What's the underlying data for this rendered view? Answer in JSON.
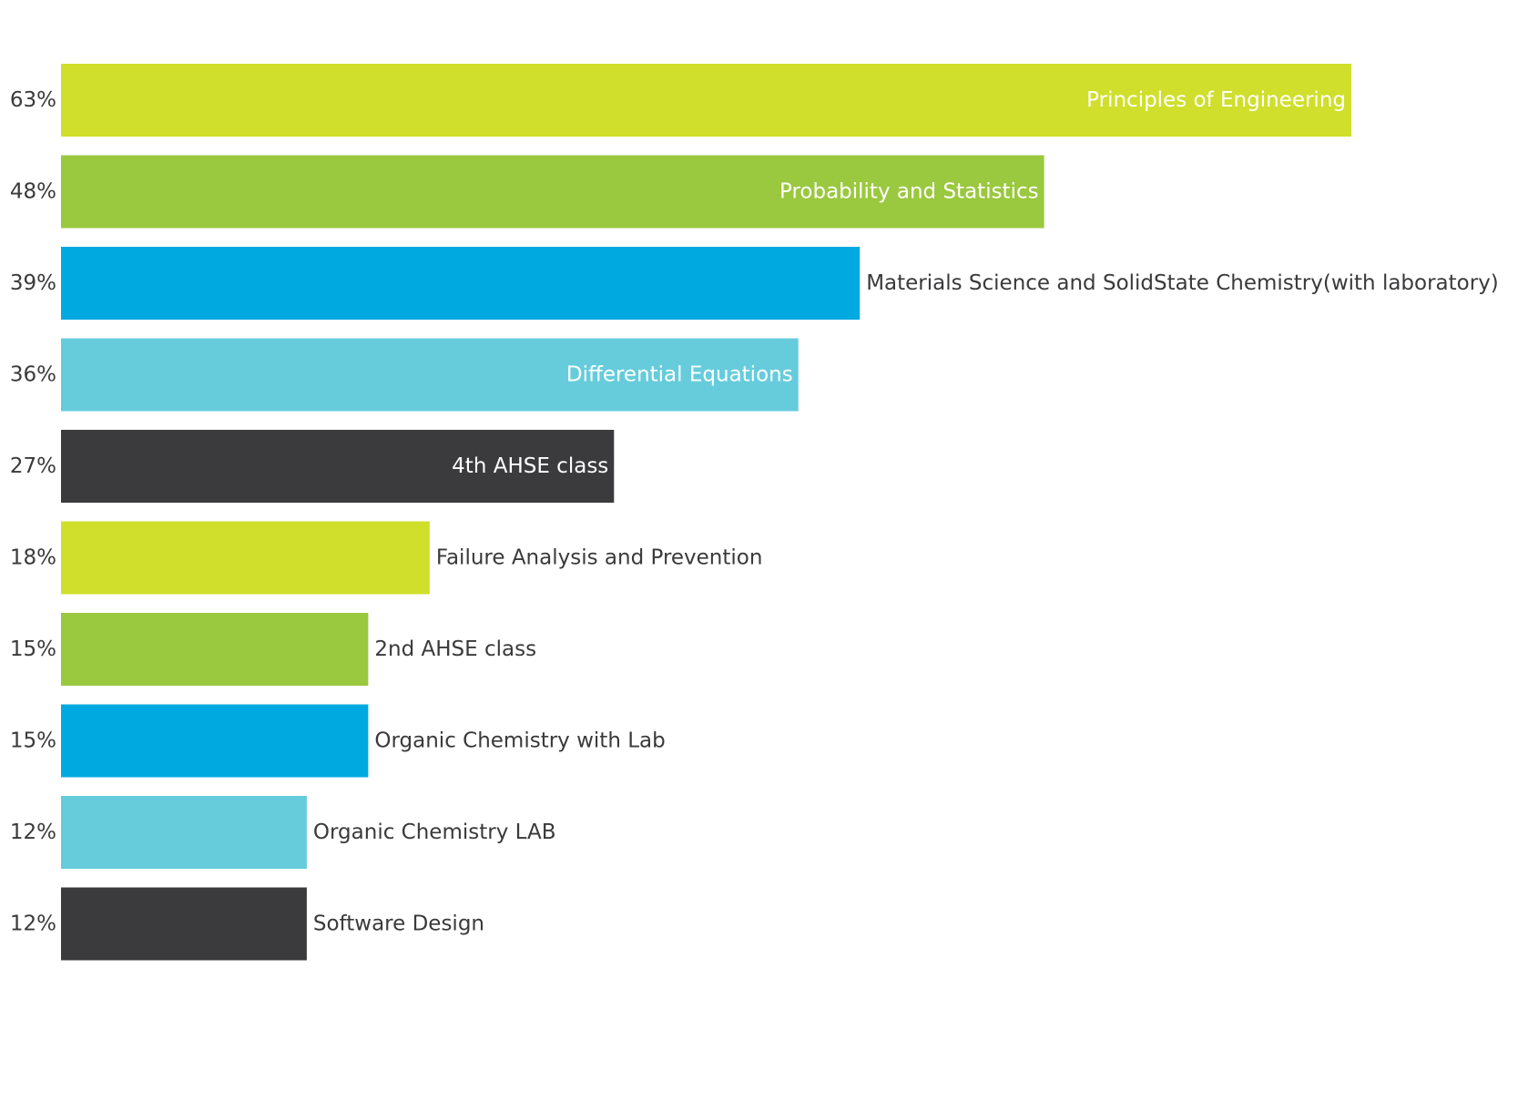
{
  "chart_data": {
    "type": "bar",
    "orientation": "horizontal",
    "categories": [
      "Principles of Engineering",
      "Probability and Statistics",
      "Materials Science and SolidState Chemistry(with laboratory)",
      "Differential Equations",
      "4th AHSE class",
      "Failure Analysis and Prevention",
      "2nd AHSE class",
      "Organic Chemistry with Lab",
      "Organic Chemistry LAB",
      "Software Design"
    ],
    "values": [
      63,
      48,
      39,
      36,
      27,
      18,
      15,
      15,
      12,
      12
    ],
    "value_labels": [
      "63%",
      "48%",
      "39%",
      "36%",
      "27%",
      "18%",
      "15%",
      "15%",
      "12%",
      "12%"
    ],
    "colors": [
      "#d0df2b",
      "#9ac83e",
      "#00a9e0",
      "#66ccdc",
      "#3b3b3d",
      "#d0df2b",
      "#9ac83e",
      "#00a9e0",
      "#66ccdc",
      "#3b3b3d"
    ],
    "label_inside": [
      true,
      true,
      false,
      true,
      true,
      false,
      false,
      false,
      false,
      false
    ],
    "title": "",
    "xlabel": "",
    "ylabel": "",
    "xlim": [
      0,
      63
    ],
    "grid": false,
    "legend": "none"
  },
  "colors": {
    "text_dark": "#3a3a3c",
    "text_light": "#ffffff",
    "background": "#ffffff"
  }
}
